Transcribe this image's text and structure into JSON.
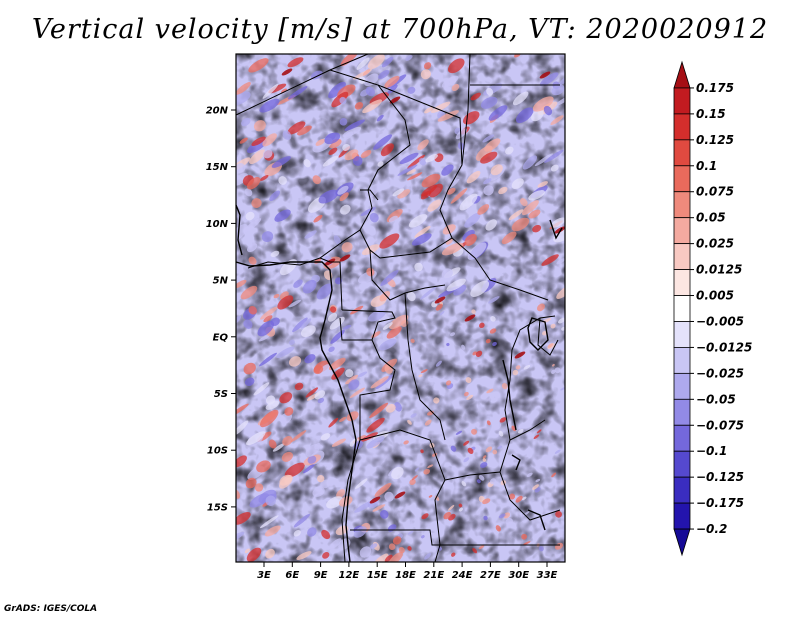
{
  "title": "Vertical velocity [m/s] at 700hPa, VT: 2020020912",
  "credit": "GrADS: IGES/COLA",
  "map": {
    "lat_labels": [
      "20N",
      "15N",
      "10N",
      "5N",
      "EQ",
      "5S",
      "10S",
      "15S"
    ],
    "lon_labels": [
      "3E",
      "6E",
      "9E",
      "12E",
      "15E",
      "18E",
      "21E",
      "24E",
      "27E",
      "30E",
      "33E"
    ],
    "lon_range": [
      0,
      35
    ],
    "lat_range": [
      -20,
      25
    ],
    "field": "vertical velocity",
    "units": "m/s",
    "level": "700hPa"
  },
  "colorbar": {
    "labels": [
      "0.175",
      "0.15",
      "0.125",
      "0.1",
      "0.075",
      "0.05",
      "0.025",
      "0.0125",
      "0.005",
      "−0.005",
      "−0.0125",
      "−0.025",
      "−0.05",
      "−0.075",
      "−0.1",
      "−0.125",
      "−0.175",
      "−0.2"
    ],
    "colors": [
      "#a50f15",
      "#c21b20",
      "#d42e2c",
      "#e04a40",
      "#e96a5c",
      "#ef8a7c",
      "#f4aaa0",
      "#f8c9c2",
      "#fce6e2",
      "#ffffff",
      "#e4e2fb",
      "#c9c6f5",
      "#aea9ee",
      "#928ae6",
      "#7468dc",
      "#5549cf",
      "#3a2dc0",
      "#2314ad",
      "#150a96"
    ]
  }
}
